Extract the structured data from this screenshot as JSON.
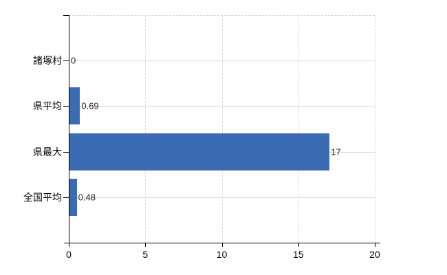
{
  "chart_data": {
    "type": "bar",
    "orientation": "horizontal",
    "title": "",
    "xlabel": "",
    "ylabel": "",
    "categories": [
      "諸塚村",
      "県平均",
      "県最大",
      "全国平均"
    ],
    "values": [
      0,
      0.69,
      17,
      0.48
    ],
    "value_labels": [
      "0",
      "0.69",
      "17",
      "0.48"
    ],
    "x_ticks": [
      0,
      5,
      10,
      15,
      20
    ],
    "x_tick_labels": [
      "0",
      "5",
      "10",
      "15",
      "20"
    ],
    "xlim": [
      0,
      20
    ],
    "grid": true,
    "legend": false,
    "colors": {
      "bar": "#3b6cb3",
      "grid": "#d9d9d9",
      "axis": "#000000",
      "category_text": "#000000",
      "tick_text": "#000000",
      "value_text": "#222222",
      "background": "#ffffff"
    }
  }
}
